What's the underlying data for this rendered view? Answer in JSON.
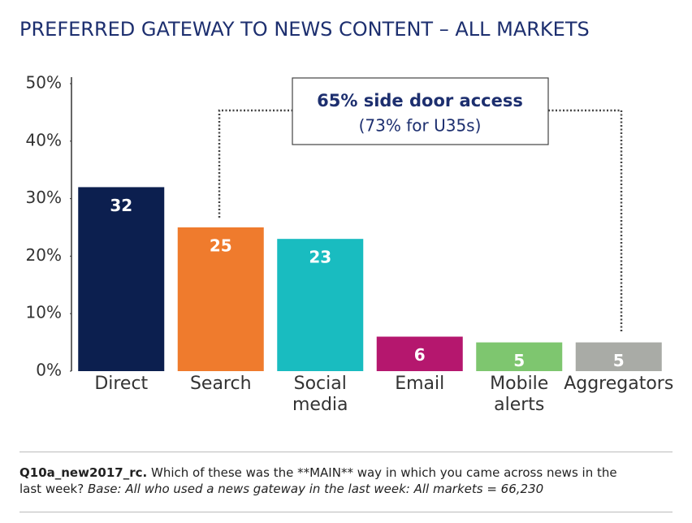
{
  "chart_data": {
    "type": "bar",
    "title": "PREFERRED GATEWAY TO NEWS CONTENT – ALL MARKETS",
    "categories": [
      "Direct",
      "Search",
      "Social media",
      "Email",
      "Mobile alerts",
      "Aggregators"
    ],
    "values": [
      32,
      25,
      23,
      6,
      5,
      5
    ],
    "colors": [
      "#0c1f4f",
      "#ef7b2d",
      "#19bcc0",
      "#b5176e",
      "#7ec66f",
      "#a9aba6"
    ],
    "ylim": [
      0,
      50
    ],
    "yticks": [
      {
        "value": 0,
        "label": "0%"
      },
      {
        "value": 10,
        "label": "10%"
      },
      {
        "value": 20,
        "label": "20%"
      },
      {
        "value": 30,
        "label": "30%"
      },
      {
        "value": 40,
        "label": "40%"
      },
      {
        "value": 50,
        "label": "50%"
      }
    ],
    "annotation": {
      "title": "65% side door access",
      "subtitle": "(73% for U35s)"
    }
  },
  "footnote": {
    "label": "Q10a_new2017_rc.",
    "question": "Which of these was the **MAIN** way in which you came across news in the last week?",
    "base": "Base: All who used a news gateway in the last week: All markets = 66,230"
  }
}
